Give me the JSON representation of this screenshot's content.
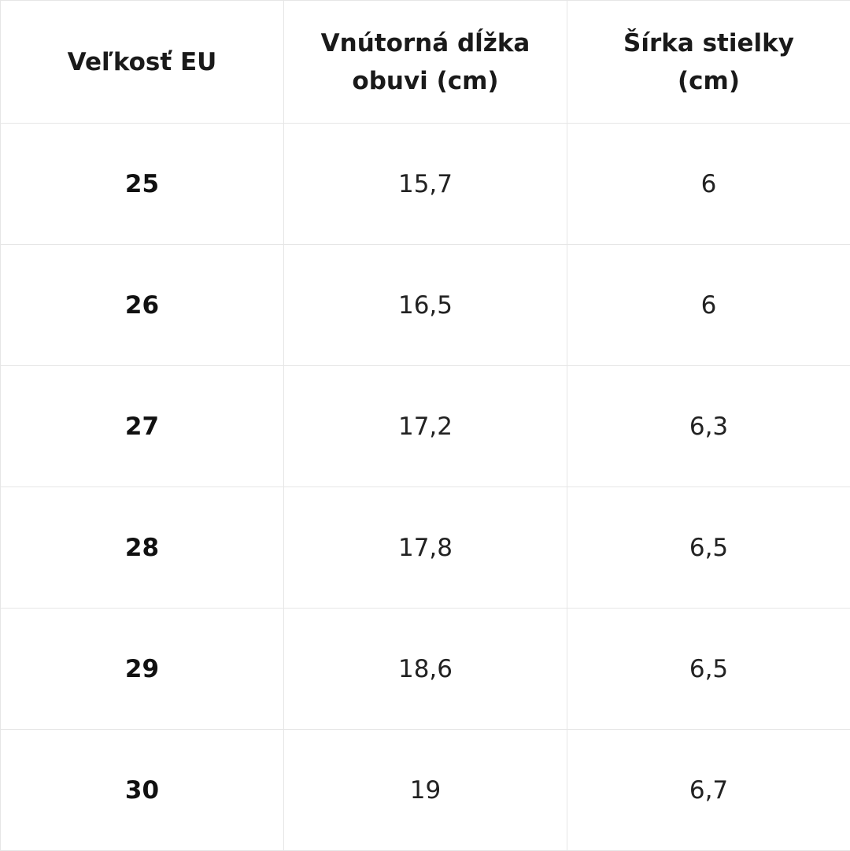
{
  "table": {
    "headers": [
      "Veľkosť EU",
      "Vnútorná dĺžka obuvi (cm)",
      "Šírka stielky (cm)"
    ],
    "rows": [
      [
        "25",
        "15,7",
        "6"
      ],
      [
        "26",
        "16,5",
        "6"
      ],
      [
        "27",
        "17,2",
        "6,3"
      ],
      [
        "28",
        "17,8",
        "6,5"
      ],
      [
        "29",
        "18,6",
        "6,5"
      ],
      [
        "30",
        "19",
        "6,7"
      ]
    ]
  }
}
